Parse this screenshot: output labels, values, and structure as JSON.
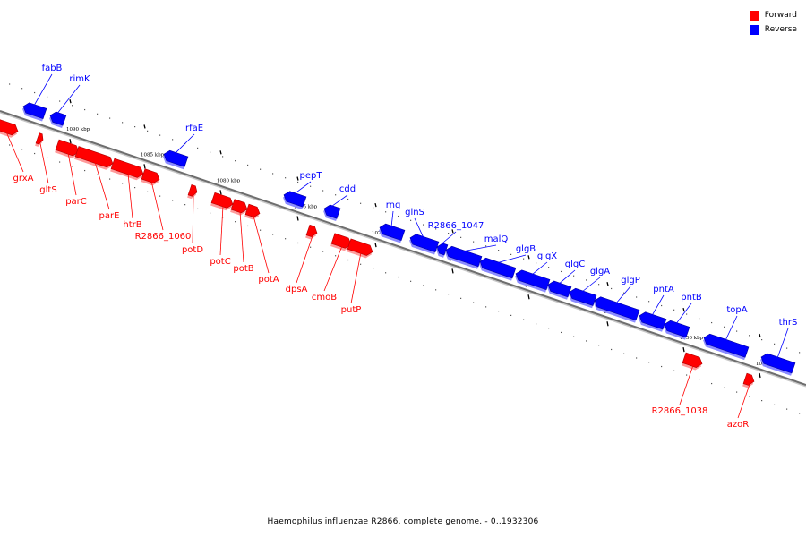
{
  "legend": {
    "forward_label": "Forward",
    "reverse_label": "Reverse",
    "forward_color": "#ff0000",
    "reverse_color": "#0000ff"
  },
  "footer": "Haemophilus influenzae R2866, complete genome. - 0..1932306",
  "ticks": [
    "1090 kbp",
    "1085 kbp",
    "1080 kbp",
    "1075 kbp",
    "1070 kbp",
    "1065 kbp",
    "1060 kbp",
    "1055 kbp",
    "1050 kbp",
    "1045 kbp"
  ],
  "genes": [
    {
      "name": "fabB",
      "strand": "reverse"
    },
    {
      "name": "rimK",
      "strand": "reverse"
    },
    {
      "name": "grxA",
      "strand": "forward"
    },
    {
      "name": "gltS",
      "strand": "forward"
    },
    {
      "name": "parC",
      "strand": "forward"
    },
    {
      "name": "parE",
      "strand": "forward"
    },
    {
      "name": "htrB",
      "strand": "forward"
    },
    {
      "name": "R2866_1060",
      "strand": "forward"
    },
    {
      "name": "rfaE",
      "strand": "reverse"
    },
    {
      "name": "potD",
      "strand": "forward"
    },
    {
      "name": "potC",
      "strand": "forward"
    },
    {
      "name": "potB",
      "strand": "forward"
    },
    {
      "name": "potA",
      "strand": "forward"
    },
    {
      "name": "pepT",
      "strand": "reverse"
    },
    {
      "name": "dpsA",
      "strand": "forward"
    },
    {
      "name": "cdd",
      "strand": "reverse"
    },
    {
      "name": "cmoB",
      "strand": "forward"
    },
    {
      "name": "putP",
      "strand": "forward"
    },
    {
      "name": "rng",
      "strand": "reverse"
    },
    {
      "name": "glnS",
      "strand": "reverse"
    },
    {
      "name": "R2866_1047",
      "strand": "reverse"
    },
    {
      "name": "malQ",
      "strand": "reverse"
    },
    {
      "name": "glgB",
      "strand": "reverse"
    },
    {
      "name": "glgX",
      "strand": "reverse"
    },
    {
      "name": "glgC",
      "strand": "reverse"
    },
    {
      "name": "glgA",
      "strand": "reverse"
    },
    {
      "name": "glgP",
      "strand": "reverse"
    },
    {
      "name": "pntA",
      "strand": "reverse"
    },
    {
      "name": "pntB",
      "strand": "reverse"
    },
    {
      "name": "topA",
      "strand": "reverse"
    },
    {
      "name": "thrS",
      "strand": "reverse"
    },
    {
      "name": "R2866_1038",
      "strand": "forward"
    },
    {
      "name": "azoR",
      "strand": "forward"
    }
  ]
}
